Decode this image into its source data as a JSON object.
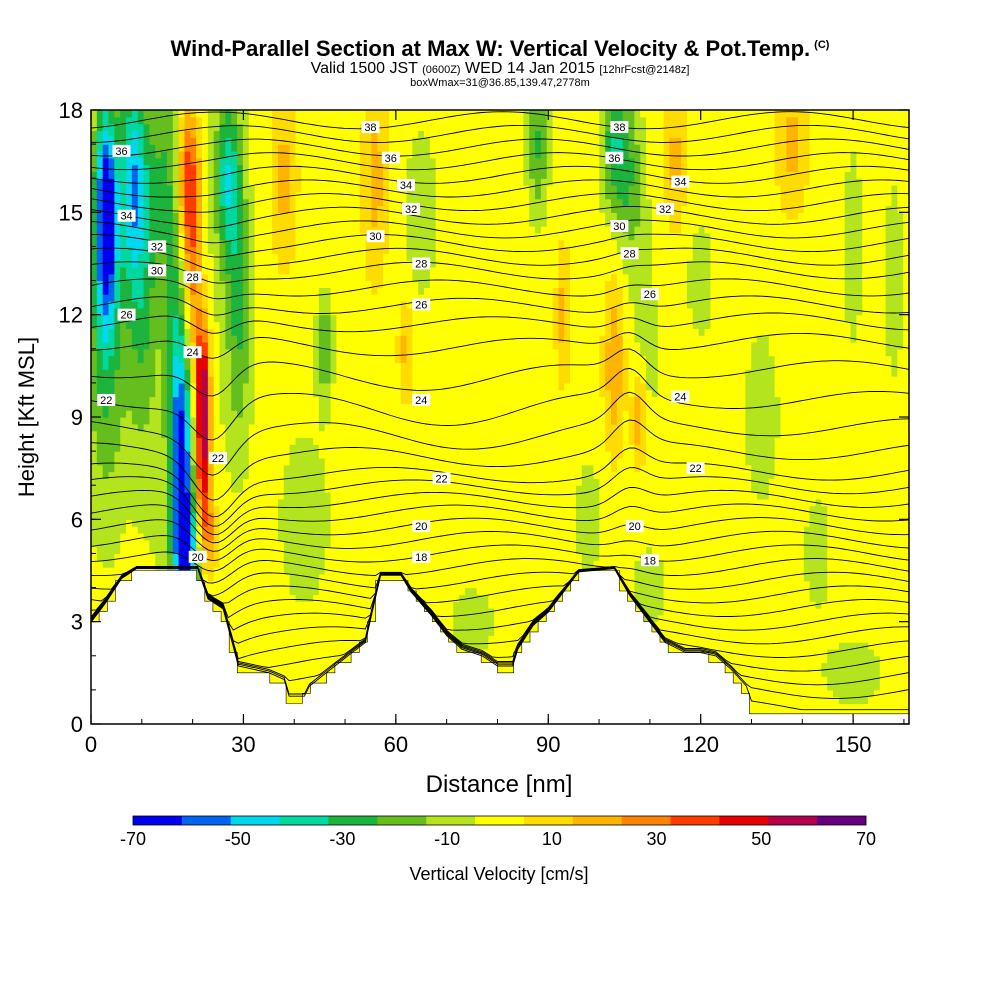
{
  "header": {
    "title": "Wind-Parallel Section at Max W: Vertical Velocity & Pot.Temp.",
    "title_mark": "(C)",
    "valid_prefix": "Valid 1500 JST",
    "valid_utc": "(0600Z)",
    "valid_date": "WED 14 Jan 2015",
    "forecast_tag": "[12hrFcst@2148z]",
    "box_info": "boxWmax=31@36.85,139.47,2778m"
  },
  "chart_data": {
    "type": "heatmap",
    "title": "Wind-Parallel Section at Max W: Vertical Velocity & Pot.Temp.",
    "xlabel": "Distance [nm]",
    "ylabel": "Height [Kft MSL]",
    "xlim": [
      0,
      161
    ],
    "ylim": [
      0,
      18
    ],
    "x_ticks": [
      "0",
      "30",
      "60",
      "90",
      "120",
      "150"
    ],
    "y_ticks": [
      "0",
      "3",
      "6",
      "9",
      "12",
      "15",
      "18"
    ],
    "colorbar": {
      "label": "Vertical Velocity [cm/s]",
      "tick_labels": [
        "-70",
        "-50",
        "-30",
        "-10",
        "10",
        "30",
        "50",
        "70"
      ],
      "bins": [
        -70,
        -60,
        -50,
        -40,
        -30,
        -20,
        -10,
        0,
        10,
        20,
        30,
        40,
        50,
        60,
        70
      ],
      "colors": [
        "#0000ee",
        "#0064f0",
        "#00d8ee",
        "#00d8a0",
        "#1cb43c",
        "#64be1e",
        "#b4e41e",
        "#ffff00",
        "#ffdc00",
        "#ffb400",
        "#ff8200",
        "#ff3c00",
        "#e60000",
        "#b4004b",
        "#64007d"
      ]
    },
    "background_value": 5,
    "terrain_kft": [
      [
        0,
        2.9
      ],
      [
        3,
        3.5
      ],
      [
        6,
        4.2
      ],
      [
        9,
        4.5
      ],
      [
        21,
        4.5
      ],
      [
        23,
        3.6
      ],
      [
        26,
        3.3
      ],
      [
        29,
        1.6
      ],
      [
        35,
        1.4
      ],
      [
        38,
        1.2
      ],
      [
        39,
        0.7
      ],
      [
        42,
        0.7
      ],
      [
        43,
        1.0
      ],
      [
        48,
        1.6
      ],
      [
        54,
        2.3
      ],
      [
        57,
        4.3
      ],
      [
        61,
        4.3
      ],
      [
        63,
        3.8
      ],
      [
        67,
        3.1
      ],
      [
        70,
        2.5
      ],
      [
        73,
        2.1
      ],
      [
        77,
        1.9
      ],
      [
        80,
        1.6
      ],
      [
        83,
        1.6
      ],
      [
        84,
        2.1
      ],
      [
        87,
        2.8
      ],
      [
        90,
        3.2
      ],
      [
        96,
        4.4
      ],
      [
        103,
        4.5
      ],
      [
        106,
        3.7
      ],
      [
        110,
        2.9
      ],
      [
        113,
        2.3
      ],
      [
        117,
        2.0
      ],
      [
        120,
        2.0
      ],
      [
        123,
        1.9
      ],
      [
        126,
        1.5
      ],
      [
        129,
        1.0
      ],
      [
        130,
        0.3
      ],
      [
        161,
        0.3
      ]
    ],
    "velocity_blobs": [
      {
        "x": 3,
        "y": 15,
        "sx": 2.2,
        "sy": 3.2,
        "value": -70
      },
      {
        "x": 3,
        "y": 11,
        "sx": 4,
        "sy": 5,
        "value": -25
      },
      {
        "x": 8,
        "y": 16,
        "sx": 2.5,
        "sy": 3,
        "value": -40
      },
      {
        "x": 10,
        "y": 13,
        "sx": 3,
        "sy": 5,
        "value": -25
      },
      {
        "x": 15,
        "y": 16,
        "sx": 4,
        "sy": 3,
        "value": -20
      },
      {
        "x": 18,
        "y": 7,
        "sx": 2,
        "sy": 3.5,
        "value": -50
      },
      {
        "x": 17,
        "y": 10,
        "sx": 2,
        "sy": 4,
        "value": -25
      },
      {
        "x": 19,
        "y": 5,
        "sx": 2.5,
        "sy": 1.5,
        "value": -40
      },
      {
        "x": 27,
        "y": 16,
        "sx": 2.5,
        "sy": 2.5,
        "value": -40
      },
      {
        "x": 29,
        "y": 12,
        "sx": 2.5,
        "sy": 4,
        "value": -25
      },
      {
        "x": 19,
        "y": 16,
        "sx": 2.2,
        "sy": 2.2,
        "value": 50
      },
      {
        "x": 20,
        "y": 13,
        "sx": 2,
        "sy": 3,
        "value": 35
      },
      {
        "x": 22,
        "y": 10,
        "sx": 1.4,
        "sy": 1.8,
        "value": 65
      },
      {
        "x": 22,
        "y": 7.5,
        "sx": 1.5,
        "sy": 1.8,
        "value": 55
      },
      {
        "x": 23,
        "y": 5.5,
        "sx": 2,
        "sy": 1.2,
        "value": 30
      },
      {
        "x": 18,
        "y": 9,
        "sx": 6,
        "sy": 9,
        "value": -10
      },
      {
        "x": 46,
        "y": 11,
        "sx": 1.5,
        "sy": 1.5,
        "value": -25
      },
      {
        "x": 42,
        "y": 6,
        "sx": 6,
        "sy": 3,
        "value": -8
      },
      {
        "x": 56,
        "y": 16,
        "sx": 2.5,
        "sy": 3,
        "value": 20
      },
      {
        "x": 38,
        "y": 16,
        "sx": 2.5,
        "sy": 2.5,
        "value": 20
      },
      {
        "x": 62,
        "y": 11,
        "sx": 1.5,
        "sy": 1.5,
        "value": 20
      },
      {
        "x": 65,
        "y": 15,
        "sx": 4,
        "sy": 3,
        "value": -8
      },
      {
        "x": 88,
        "y": 17,
        "sx": 2,
        "sy": 2,
        "value": -25
      },
      {
        "x": 93,
        "y": 12,
        "sx": 1.5,
        "sy": 2,
        "value": 20
      },
      {
        "x": 103,
        "y": 17,
        "sx": 2.5,
        "sy": 2,
        "value": -30
      },
      {
        "x": 106,
        "y": 16,
        "sx": 2.5,
        "sy": 2.5,
        "value": -20
      },
      {
        "x": 103,
        "y": 10.5,
        "sx": 2,
        "sy": 2.5,
        "value": 25
      },
      {
        "x": 108,
        "y": 9,
        "sx": 1.5,
        "sy": 1.5,
        "value": 30
      },
      {
        "x": 109,
        "y": 11,
        "sx": 2.5,
        "sy": 4,
        "value": -10
      },
      {
        "x": 98,
        "y": 6,
        "sx": 3,
        "sy": 2,
        "value": -8
      },
      {
        "x": 115,
        "y": 16.5,
        "sx": 2,
        "sy": 2,
        "value": 20
      },
      {
        "x": 120,
        "y": 13,
        "sx": 3,
        "sy": 2,
        "value": -8
      },
      {
        "x": 138,
        "y": 17,
        "sx": 3,
        "sy": 2,
        "value": 20
      },
      {
        "x": 150,
        "y": 14,
        "sx": 2,
        "sy": 3,
        "value": -10
      },
      {
        "x": 158,
        "y": 13,
        "sx": 2,
        "sy": 3,
        "value": -10
      },
      {
        "x": 143,
        "y": 5,
        "sx": 3,
        "sy": 2,
        "value": -8
      },
      {
        "x": 150,
        "y": 1.5,
        "sx": 6,
        "sy": 1,
        "value": -10
      },
      {
        "x": 132,
        "y": 9,
        "sx": 4,
        "sy": 3,
        "value": -8
      },
      {
        "x": 75,
        "y": 3,
        "sx": 5,
        "sy": 1.2,
        "value": -8
      },
      {
        "x": 110,
        "y": 4,
        "sx": 4,
        "sy": 1.2,
        "value": -8
      }
    ],
    "theta_contour_labels": [
      {
        "text": "38",
        "x": 55,
        "y": 17.5
      },
      {
        "text": "36",
        "x": 6,
        "y": 16.8
      },
      {
        "text": "36",
        "x": 59,
        "y": 16.6
      },
      {
        "text": "34",
        "x": 7,
        "y": 14.9
      },
      {
        "text": "34",
        "x": 62,
        "y": 15.8
      },
      {
        "text": "32",
        "x": 13,
        "y": 14.0
      },
      {
        "text": "32",
        "x": 63,
        "y": 15.1
      },
      {
        "text": "30",
        "x": 13,
        "y": 13.3
      },
      {
        "text": "30",
        "x": 56,
        "y": 14.3
      },
      {
        "text": "28",
        "x": 20,
        "y": 13.1
      },
      {
        "text": "28",
        "x": 65,
        "y": 13.5
      },
      {
        "text": "26",
        "x": 7,
        "y": 12.0
      },
      {
        "text": "26",
        "x": 65,
        "y": 12.3
      },
      {
        "text": "24",
        "x": 20,
        "y": 10.9
      },
      {
        "text": "24",
        "x": 65,
        "y": 9.5
      },
      {
        "text": "22",
        "x": 3,
        "y": 9.5
      },
      {
        "text": "22",
        "x": 25,
        "y": 7.8
      },
      {
        "text": "22",
        "x": 69,
        "y": 7.2
      },
      {
        "text": "20",
        "x": 65,
        "y": 5.8
      },
      {
        "text": "20",
        "x": 21,
        "y": 4.9
      },
      {
        "text": "18",
        "x": 65,
        "y": 4.9
      },
      {
        "text": "38",
        "x": 104,
        "y": 17.5
      },
      {
        "text": "36",
        "x": 103,
        "y": 16.6
      },
      {
        "text": "34",
        "x": 116,
        "y": 15.9
      },
      {
        "text": "32",
        "x": 113,
        "y": 15.1
      },
      {
        "text": "30",
        "x": 104,
        "y": 14.6
      },
      {
        "text": "28",
        "x": 106,
        "y": 13.8
      },
      {
        "text": "26",
        "x": 110,
        "y": 12.6
      },
      {
        "text": "24",
        "x": 116,
        "y": 9.6
      },
      {
        "text": "22",
        "x": 119,
        "y": 7.5
      },
      {
        "text": "20",
        "x": 107,
        "y": 5.8
      },
      {
        "text": "18",
        "x": 110,
        "y": 4.8
      }
    ],
    "theta_levels_kft": [
      0.5,
      1.0,
      1.4,
      1.8,
      2.2,
      2.6,
      3.0,
      3.4,
      3.8,
      4.2,
      4.6,
      5.0,
      5.4,
      5.8,
      6.2,
      6.6,
      7.0,
      7.4,
      8.0,
      8.7,
      9.5,
      10.4,
      11.2,
      11.8,
      12.3,
      12.8,
      13.3,
      13.7,
      14.1,
      14.5,
      14.9,
      15.3,
      15.7,
      16.1,
      16.5,
      16.9,
      17.3,
      17.7
    ]
  }
}
